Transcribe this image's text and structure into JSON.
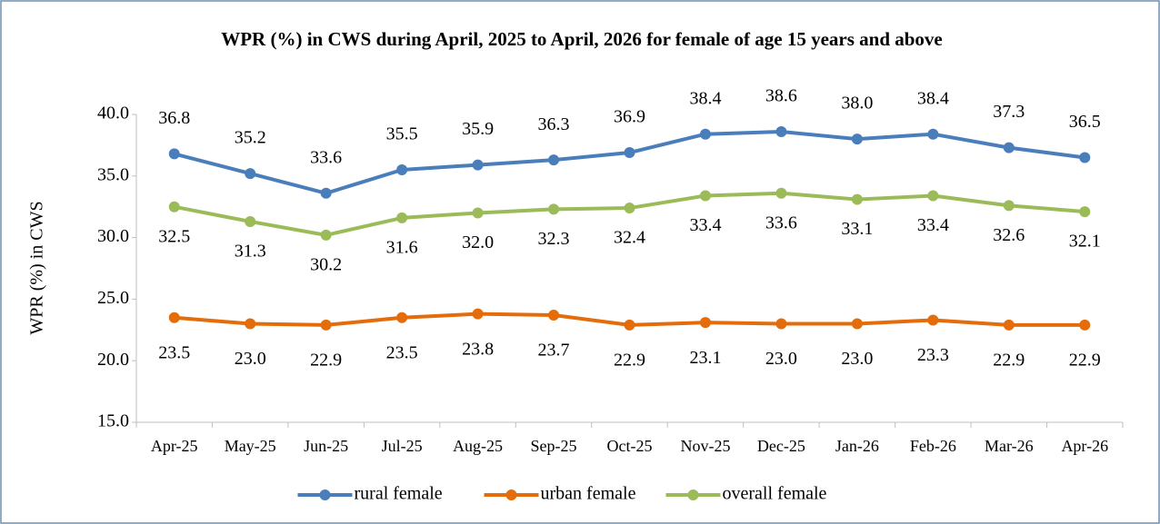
{
  "chart_data": {
    "type": "line",
    "title": "WPR (%) in CWS during April, 2025 to April, 2026 for female of age 15 years and above",
    "y_label": "WPR (%) in CWS",
    "categories": [
      "Apr-25",
      "May-25",
      "Jun-25",
      "Jul-25",
      "Aug-25",
      "Sep-25",
      "Oct-25",
      "Nov-25",
      "Dec-25",
      "Jan-26",
      "Feb-26",
      "Mar-26",
      "Apr-26"
    ],
    "series": [
      {
        "name": "rural female",
        "color": "#4a7ebb",
        "values": [
          36.8,
          35.2,
          33.6,
          35.5,
          35.9,
          36.3,
          36.9,
          38.4,
          38.6,
          38.0,
          38.4,
          37.3,
          36.5
        ],
        "value_labels": [
          "36.8",
          "35.2",
          "33.6",
          "35.5",
          "35.9",
          "36.3",
          "36.9",
          "38.4",
          "38.6",
          "38.0",
          "38.4",
          "37.3",
          "36.5"
        ]
      },
      {
        "name": "urban female",
        "color": "#e46c0a",
        "values": [
          23.5,
          23.0,
          22.9,
          23.5,
          23.8,
          23.7,
          22.9,
          23.1,
          23.0,
          23.0,
          23.3,
          22.9,
          22.9
        ],
        "value_labels": [
          "23.5",
          "23.0",
          "22.9",
          "23.5",
          "23.8",
          "23.7",
          "22.9",
          "23.1",
          "23.0",
          "23.0",
          "23.3",
          "22.9",
          "22.9"
        ]
      },
      {
        "name": "overall female",
        "color": "#9bbb59",
        "values": [
          32.5,
          31.3,
          30.2,
          31.6,
          32.0,
          32.3,
          32.4,
          33.4,
          33.6,
          33.1,
          33.4,
          32.6,
          32.1
        ],
        "value_labels": [
          "32.5",
          "31.3",
          "30.2",
          "31.6",
          "32.0",
          "32.3",
          "32.4",
          "33.4",
          "33.6",
          "33.1",
          "33.4",
          "32.6",
          "32.1"
        ]
      }
    ],
    "ylim": [
      15,
      40
    ],
    "yticks": [
      {
        "value": 15,
        "label": "15.0"
      },
      {
        "value": 20,
        "label": "20.0"
      },
      {
        "value": 25,
        "label": "25.0"
      },
      {
        "value": 30,
        "label": "30.0"
      },
      {
        "value": 35,
        "label": "35.0"
      },
      {
        "value": 40,
        "label": "40.0"
      }
    ],
    "grid": false,
    "legend": "bottom"
  }
}
